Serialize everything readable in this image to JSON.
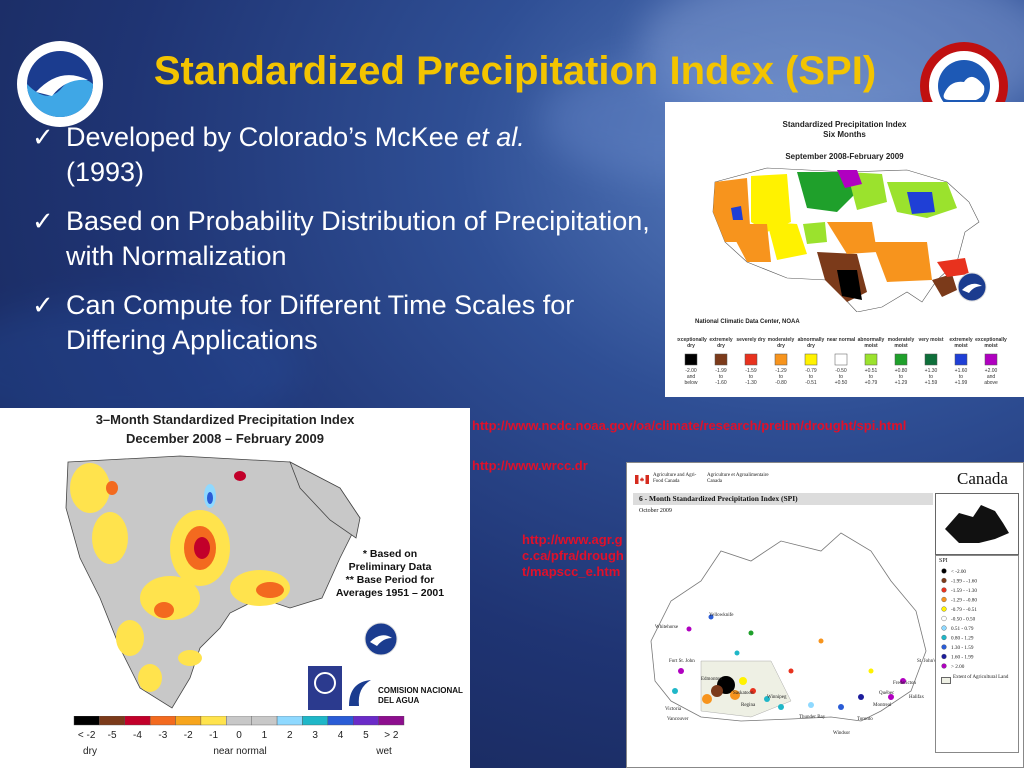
{
  "slide": {
    "title": "Standardized Precipitation Index (SPI)",
    "colors": {
      "title": "#f3c400",
      "background": "#1f3473",
      "link": "#e0102a"
    },
    "icons": {
      "left_logo": "noaa-logo-icon",
      "right_logo": "national-weather-service-logo-icon",
      "check": "checkmark-icon"
    }
  },
  "bullets": [
    {
      "check": "✓",
      "text": "Developed by Colorado’s McKee ",
      "italic": "et al.",
      "text2": " (1993)"
    },
    {
      "check": "✓",
      "text": "Based on Probability Distribution of Precipitation, with Normalization"
    },
    {
      "check": "✓",
      "text": "Can Compute for Different Time Scales for Differing Applications"
    }
  ],
  "links": {
    "ncdc": "http://www.ncdc.noaa.gov/oa/climate/research/prelim/drought/spi.html",
    "wrcc": "http://www.wrcc.dr",
    "agr": "http://www.agr.gc.ca/pfra/drought/mapscc_e.htm"
  },
  "us_six_month": {
    "title": "Standardized Precipitation Index",
    "subtitle": "Six Months",
    "period": "September 2008-February 2009",
    "credit": "National Climatic Data Center, NOAA",
    "legend": [
      {
        "label": "exceptionally dry",
        "range": "-2.00 and below",
        "color": "#000000"
      },
      {
        "label": "extremely dry",
        "range": "-1.99 to -1.60",
        "color": "#7b3a1a"
      },
      {
        "label": "severely dry",
        "range": "-1.59 to -1.30",
        "color": "#e8321e"
      },
      {
        "label": "moderately dry",
        "range": "-1.29 to -0.80",
        "color": "#f7941d"
      },
      {
        "label": "abnormally dry",
        "range": "-0.79 to -0.51",
        "color": "#fff200"
      },
      {
        "label": "near normal",
        "range": "-0.50 to +0.50",
        "color": "#ffffff"
      },
      {
        "label": "abnormally moist",
        "range": "+0.51 to +0.79",
        "color": "#9be22d"
      },
      {
        "label": "moderately moist",
        "range": "+0.80 to +1.29",
        "color": "#1fa02b"
      },
      {
        "label": "very moist",
        "range": "+1.30 to +1.59",
        "color": "#0e6f3a"
      },
      {
        "label": "extremely moist",
        "range": "+1.60 to +1.99",
        "color": "#1f3fd6"
      },
      {
        "label": "exceptionally moist",
        "range": "+2.00 and above",
        "color": "#b000c0"
      }
    ]
  },
  "us_mex_three_month": {
    "title": "3–Month Standardized Precipitation Index",
    "period": "December 2008 – February 2009",
    "notes": [
      "* Based on",
      "Preliminary Data",
      "** Base Period for",
      "Averages 1951 – 2001"
    ],
    "agency": [
      "COMISION NACIONAL",
      "DEL AGUA"
    ],
    "scale_ticks": [
      "< -2",
      "-5",
      "-4",
      "-3",
      "-2",
      "-1",
      "0",
      "1",
      "2",
      "3",
      "4",
      "5",
      "> 2"
    ],
    "scale_colors": [
      "#000000",
      "#7b3a1a",
      "#c2002a",
      "#f36a1f",
      "#f7a51d",
      "#ffe34d",
      "#c8c8c8",
      "#c8c8c8",
      "#8fd9ff",
      "#1fb7c8",
      "#2a5cd6",
      "#6a2bc8",
      "#8d0e8e"
    ],
    "captions": [
      "dry",
      "near normal",
      "wet"
    ]
  },
  "canada_six_month": {
    "header_left": "Agriculture and Agri-Food Canada",
    "header_right": "Agriculture et Agroalimentaire Canada",
    "wordmark": "Canada",
    "title": "6 - Month Standardized Precipitation Index (SPI)",
    "period": "October 2009",
    "legend_title": "SPI",
    "legend": [
      {
        "range": "< -2.00",
        "color": "#000000"
      },
      {
        "range": "-1.99 - -1.60",
        "color": "#7b3a1a"
      },
      {
        "range": "-1.59 - -1.30",
        "color": "#e8321e"
      },
      {
        "range": "-1.29 - -0.80",
        "color": "#f7941d"
      },
      {
        "range": "-0.79 - -0.51",
        "color": "#fff200"
      },
      {
        "range": "-0.50 - 0.50",
        "color": "#ffffff"
      },
      {
        "range": "0.51 - 0.79",
        "color": "#8fd9ff"
      },
      {
        "range": "0.80 - 1.29",
        "color": "#1fb7c8"
      },
      {
        "range": "1.30 - 1.59",
        "color": "#2a5cd6"
      },
      {
        "range": "1.60 - 1.99",
        "color": "#1c1c9c"
      },
      {
        "range": "> 2.00",
        "color": "#b000c0"
      }
    ],
    "extent_label": "Extent of Agricultural Land",
    "cities": [
      "Whitehorse",
      "Yellowknife",
      "Fort St. John",
      "Edmonton",
      "Saskatoon",
      "Regina",
      "Winnipeg",
      "Thunder Bay",
      "Toronto",
      "Victoria",
      "Vancouver",
      "Windsor",
      "Montreal",
      "Québec",
      "Fredericton",
      "Halifax",
      "St. John's"
    ]
  }
}
